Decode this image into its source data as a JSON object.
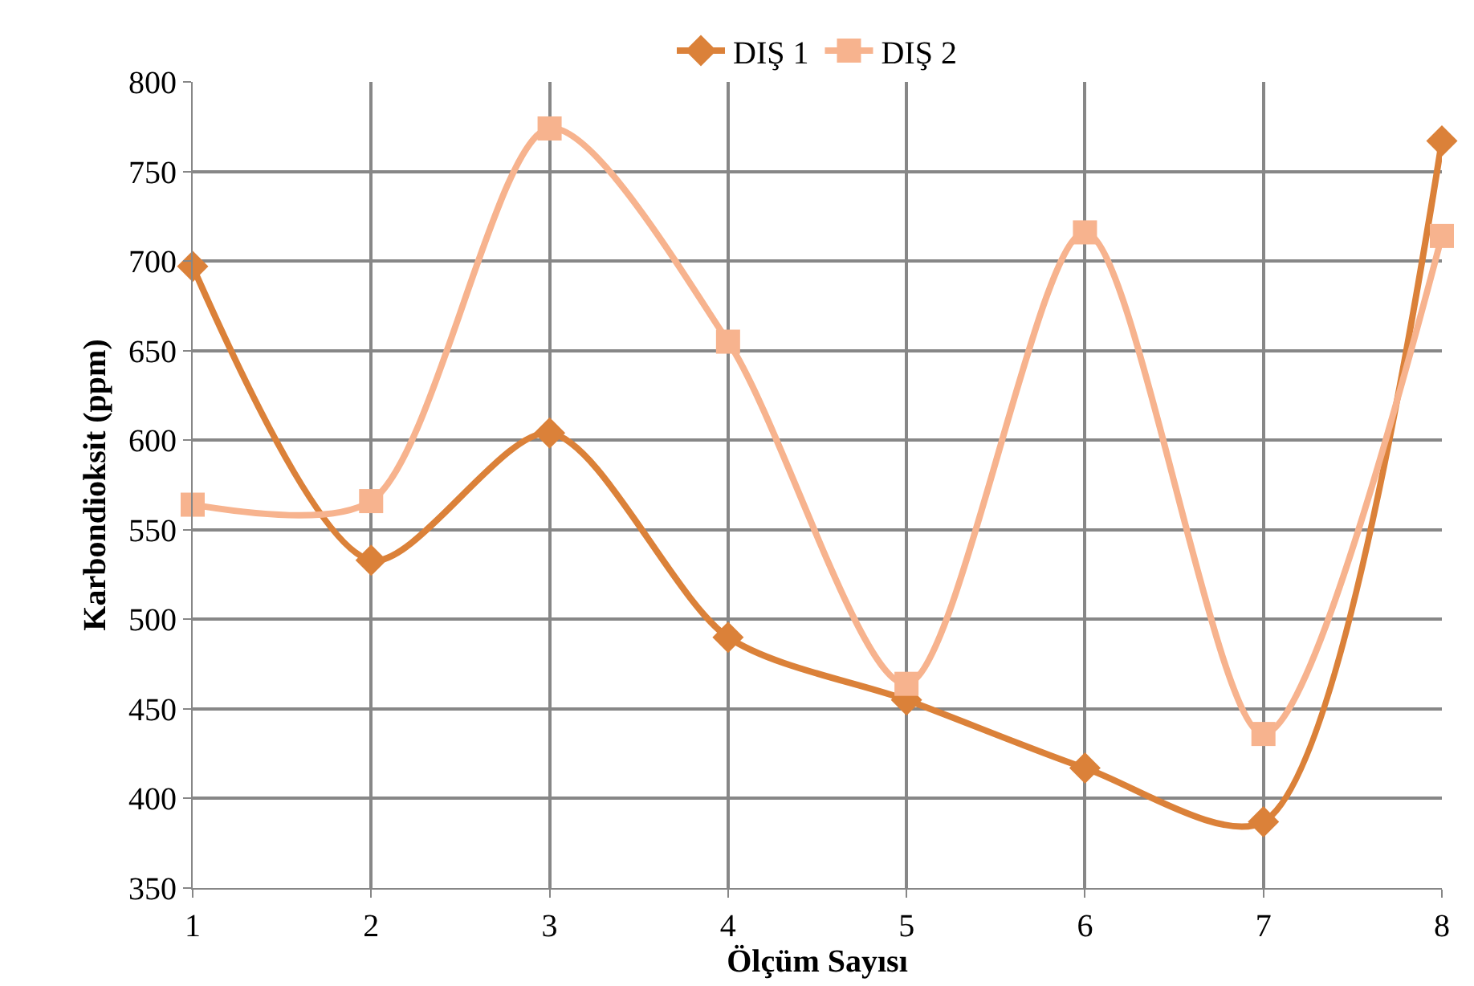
{
  "chart_data": {
    "type": "line",
    "xlabel": "Ölçüm Sayısı",
    "ylabel": "Karbondioksit (ppm)",
    "x": [
      1,
      2,
      3,
      4,
      5,
      6,
      7,
      8
    ],
    "series": [
      {
        "name": "DIŞ 1",
        "color": "#db8139",
        "marker": "diamond",
        "values": [
          697,
          533,
          604,
          490,
          455,
          417,
          387,
          767
        ]
      },
      {
        "name": "DIŞ 2",
        "color": "#f7b38e",
        "marker": "square",
        "values": [
          564,
          566,
          774,
          655,
          464,
          716,
          436,
          714
        ]
      }
    ],
    "xlim": [
      1,
      8
    ],
    "xticks": [
      1,
      2,
      3,
      4,
      5,
      6,
      7,
      8
    ],
    "ylim": [
      350,
      800
    ],
    "yticks": [
      350,
      400,
      450,
      500,
      550,
      600,
      650,
      700,
      750,
      800
    ],
    "grid": true,
    "legend": "top",
    "line_style": "solid"
  }
}
